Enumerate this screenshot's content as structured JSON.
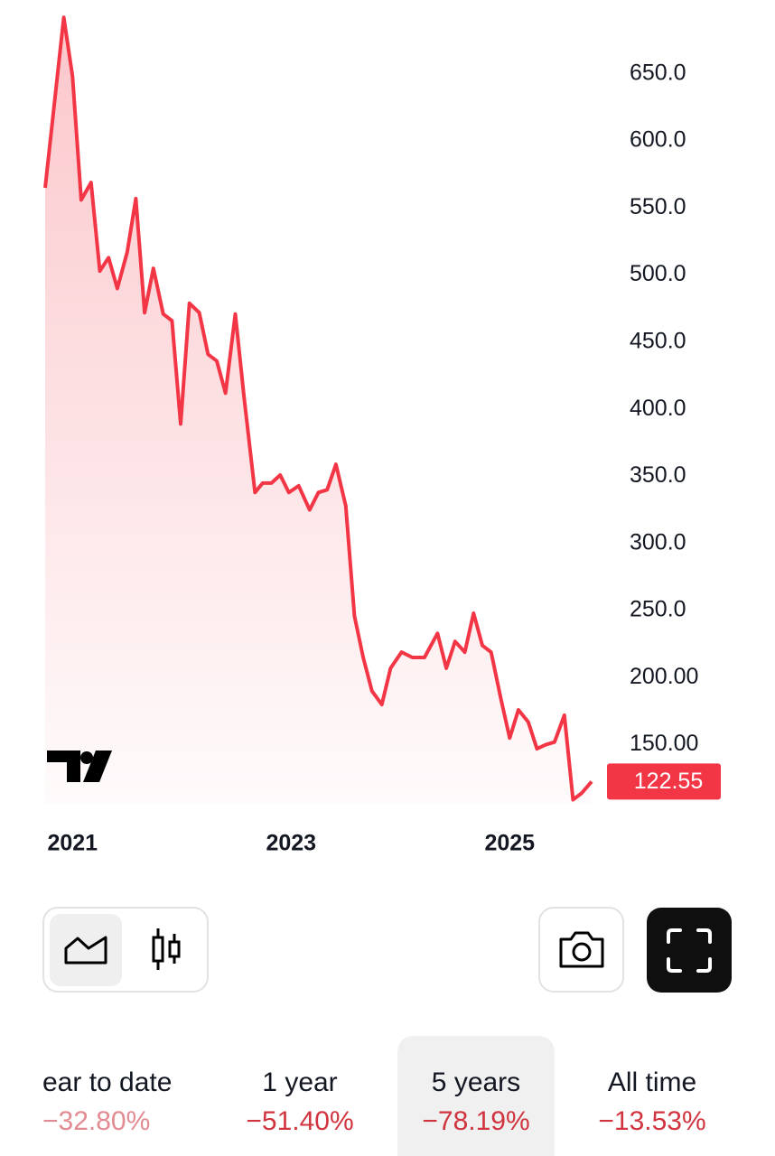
{
  "chart_data": {
    "type": "line",
    "x": [
      2020.75,
      2020.92,
      2021.0,
      2021.08,
      2021.17,
      2021.25,
      2021.33,
      2021.41,
      2021.5,
      2021.58,
      2021.66,
      2021.74,
      2021.83,
      2021.91,
      2021.99,
      2022.07,
      2022.16,
      2022.24,
      2022.32,
      2022.4,
      2022.49,
      2022.57,
      2022.67,
      2022.74,
      2022.82,
      2022.9,
      2022.98,
      2023.07,
      2023.17,
      2023.25,
      2023.33,
      2023.41,
      2023.5,
      2023.58,
      2023.66,
      2023.74,
      2023.83,
      2023.91,
      2024.01,
      2024.11,
      2024.22,
      2024.34,
      2024.42,
      2024.5,
      2024.59,
      2024.67,
      2024.75,
      2024.83,
      2024.92,
      2025.0,
      2025.08,
      2025.17,
      2025.25,
      2025.33,
      2025.41,
      2025.5,
      2025.58,
      2025.66,
      2025.75
    ],
    "values": [
      565,
      692,
      648,
      556,
      569,
      503,
      513,
      490,
      517,
      557,
      472,
      505,
      471,
      466,
      389,
      479,
      472,
      441,
      436,
      412,
      471,
      409,
      338,
      345,
      345,
      351,
      338,
      343,
      325,
      338,
      340,
      359,
      328,
      246,
      215,
      190,
      180,
      207,
      219,
      215,
      215,
      233,
      207,
      227,
      219,
      248,
      224,
      219,
      184,
      155,
      176,
      167,
      147,
      150,
      152,
      172,
      109,
      114,
      122.55
    ],
    "color": "#f23645",
    "xlim": [
      2020.75,
      2025.75
    ],
    "xticks": [
      2021,
      2023,
      2025
    ],
    "ylim": [
      106,
      705
    ],
    "yticks": [
      {
        "value": 150,
        "label": "150.00"
      },
      {
        "value": 200,
        "label": "200.00"
      },
      {
        "value": 250,
        "label": "250.0"
      },
      {
        "value": 300,
        "label": "300.0"
      },
      {
        "value": 350,
        "label": "350.0"
      },
      {
        "value": 400,
        "label": "400.0"
      },
      {
        "value": 450,
        "label": "450.0"
      },
      {
        "value": 500,
        "label": "500.0"
      },
      {
        "value": 550,
        "label": "550.0"
      },
      {
        "value": 600,
        "label": "600.0"
      },
      {
        "value": 650,
        "label": "650.0"
      }
    ],
    "last_value": 122.55
  },
  "periods": [
    {
      "label": "ear to date",
      "change": "−32.80%"
    },
    {
      "label": "1 year",
      "change": "−51.40%"
    },
    {
      "label": "5 years",
      "change": "−78.19%"
    },
    {
      "label": "All time",
      "change": "−13.53%"
    }
  ]
}
